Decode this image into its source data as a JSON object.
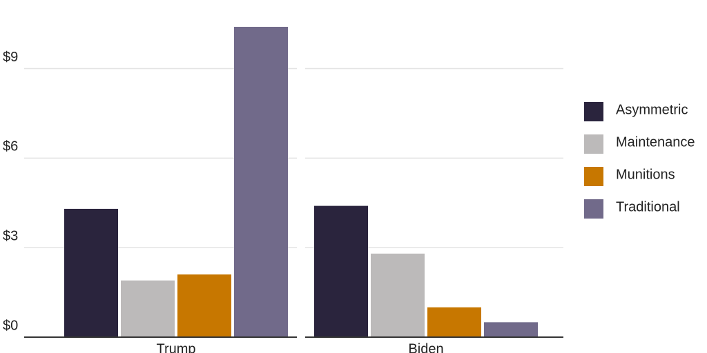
{
  "chart_data": {
    "type": "bar",
    "categories": [
      "Trump",
      "Biden"
    ],
    "series": [
      {
        "name": "Asymmetric",
        "color": "#2a243d",
        "values": [
          4.3,
          4.4
        ]
      },
      {
        "name": "Maintenance",
        "color": "#bcbaba",
        "values": [
          1.9,
          2.8
        ]
      },
      {
        "name": "Munitions",
        "color": "#c77700",
        "values": [
          2.1,
          1.0
        ]
      },
      {
        "name": "Traditional",
        "color": "#716a8a",
        "values": [
          10.4,
          0.5
        ]
      }
    ],
    "ylim": [
      0,
      11.3
    ],
    "yticks": [
      {
        "value": 0,
        "label": "$0"
      },
      {
        "value": 3,
        "label": "$3"
      },
      {
        "value": 6,
        "label": "$6"
      },
      {
        "value": 9,
        "label": "$9"
      }
    ],
    "grid": true,
    "legend": "right"
  }
}
